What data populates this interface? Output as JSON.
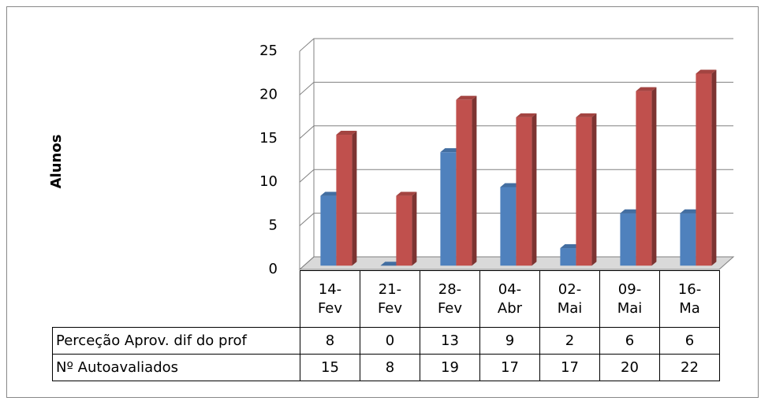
{
  "chart_data": {
    "type": "bar3d",
    "y_label": "Alunos",
    "categories": [
      "14-\nFev",
      "21-\nFev",
      "28-\nFev",
      "04-\nAbr",
      "02-\nMai",
      "09-\nMai",
      "16-\nMa"
    ],
    "series": [
      {
        "name": "Perceção Aprov. dif do prof",
        "color": "#4f81bd",
        "values": [
          8,
          0,
          13,
          9,
          2,
          6,
          6
        ]
      },
      {
        "name": "Nº Autoavaliados",
        "color": "#c0504d",
        "values": [
          15,
          8,
          19,
          17,
          17,
          20,
          22
        ]
      }
    ],
    "ylim": [
      0,
      25
    ],
    "yticks": [
      0,
      5,
      10,
      15,
      20,
      25
    ],
    "grid": true
  }
}
